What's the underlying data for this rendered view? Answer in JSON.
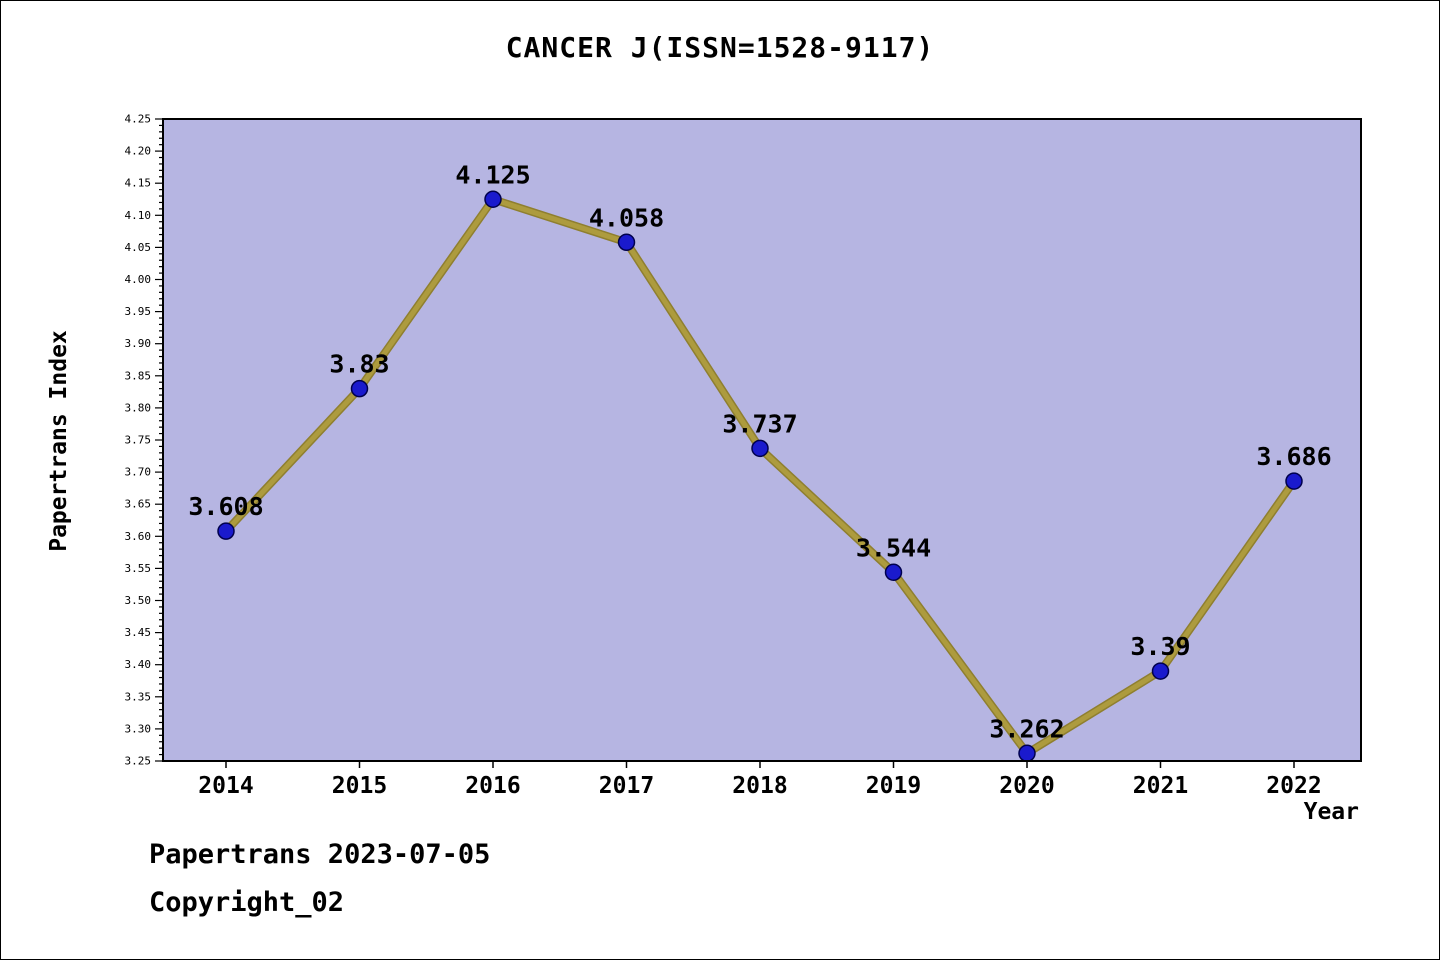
{
  "title": "CANCER J(ISSN=1528-9117)",
  "footer": {
    "line1": "Papertrans 2023-07-05",
    "line2": "Copyright_02"
  },
  "chart_data": {
    "type": "line",
    "title": "CANCER J(ISSN=1528-9117)",
    "xlabel": "Year",
    "ylabel": "Papertrans Index",
    "categories": [
      2014,
      2015,
      2016,
      2017,
      2018,
      2019,
      2020,
      2021,
      2022
    ],
    "values": [
      3.608,
      3.83,
      4.125,
      4.058,
      3.737,
      3.544,
      3.262,
      3.39,
      3.686
    ],
    "point_labels": [
      "3.608",
      "3.83",
      "4.125",
      "4.058",
      "3.737",
      "3.544",
      "3.262",
      "3.39",
      "3.686"
    ],
    "ylim": [
      3.25,
      4.25
    ],
    "ytick_major_step": 0.05,
    "ytick_minor_step": 0.01,
    "grid": "off",
    "legend": "none",
    "colors": {
      "plot_bg": "#b6b5e2",
      "line": "#ad9b3e",
      "line_edge": "#8f7f2f",
      "marker_fill": "#1a1acd",
      "marker_edge": "#00004d",
      "axis": "#000000",
      "text": "#000000"
    }
  }
}
